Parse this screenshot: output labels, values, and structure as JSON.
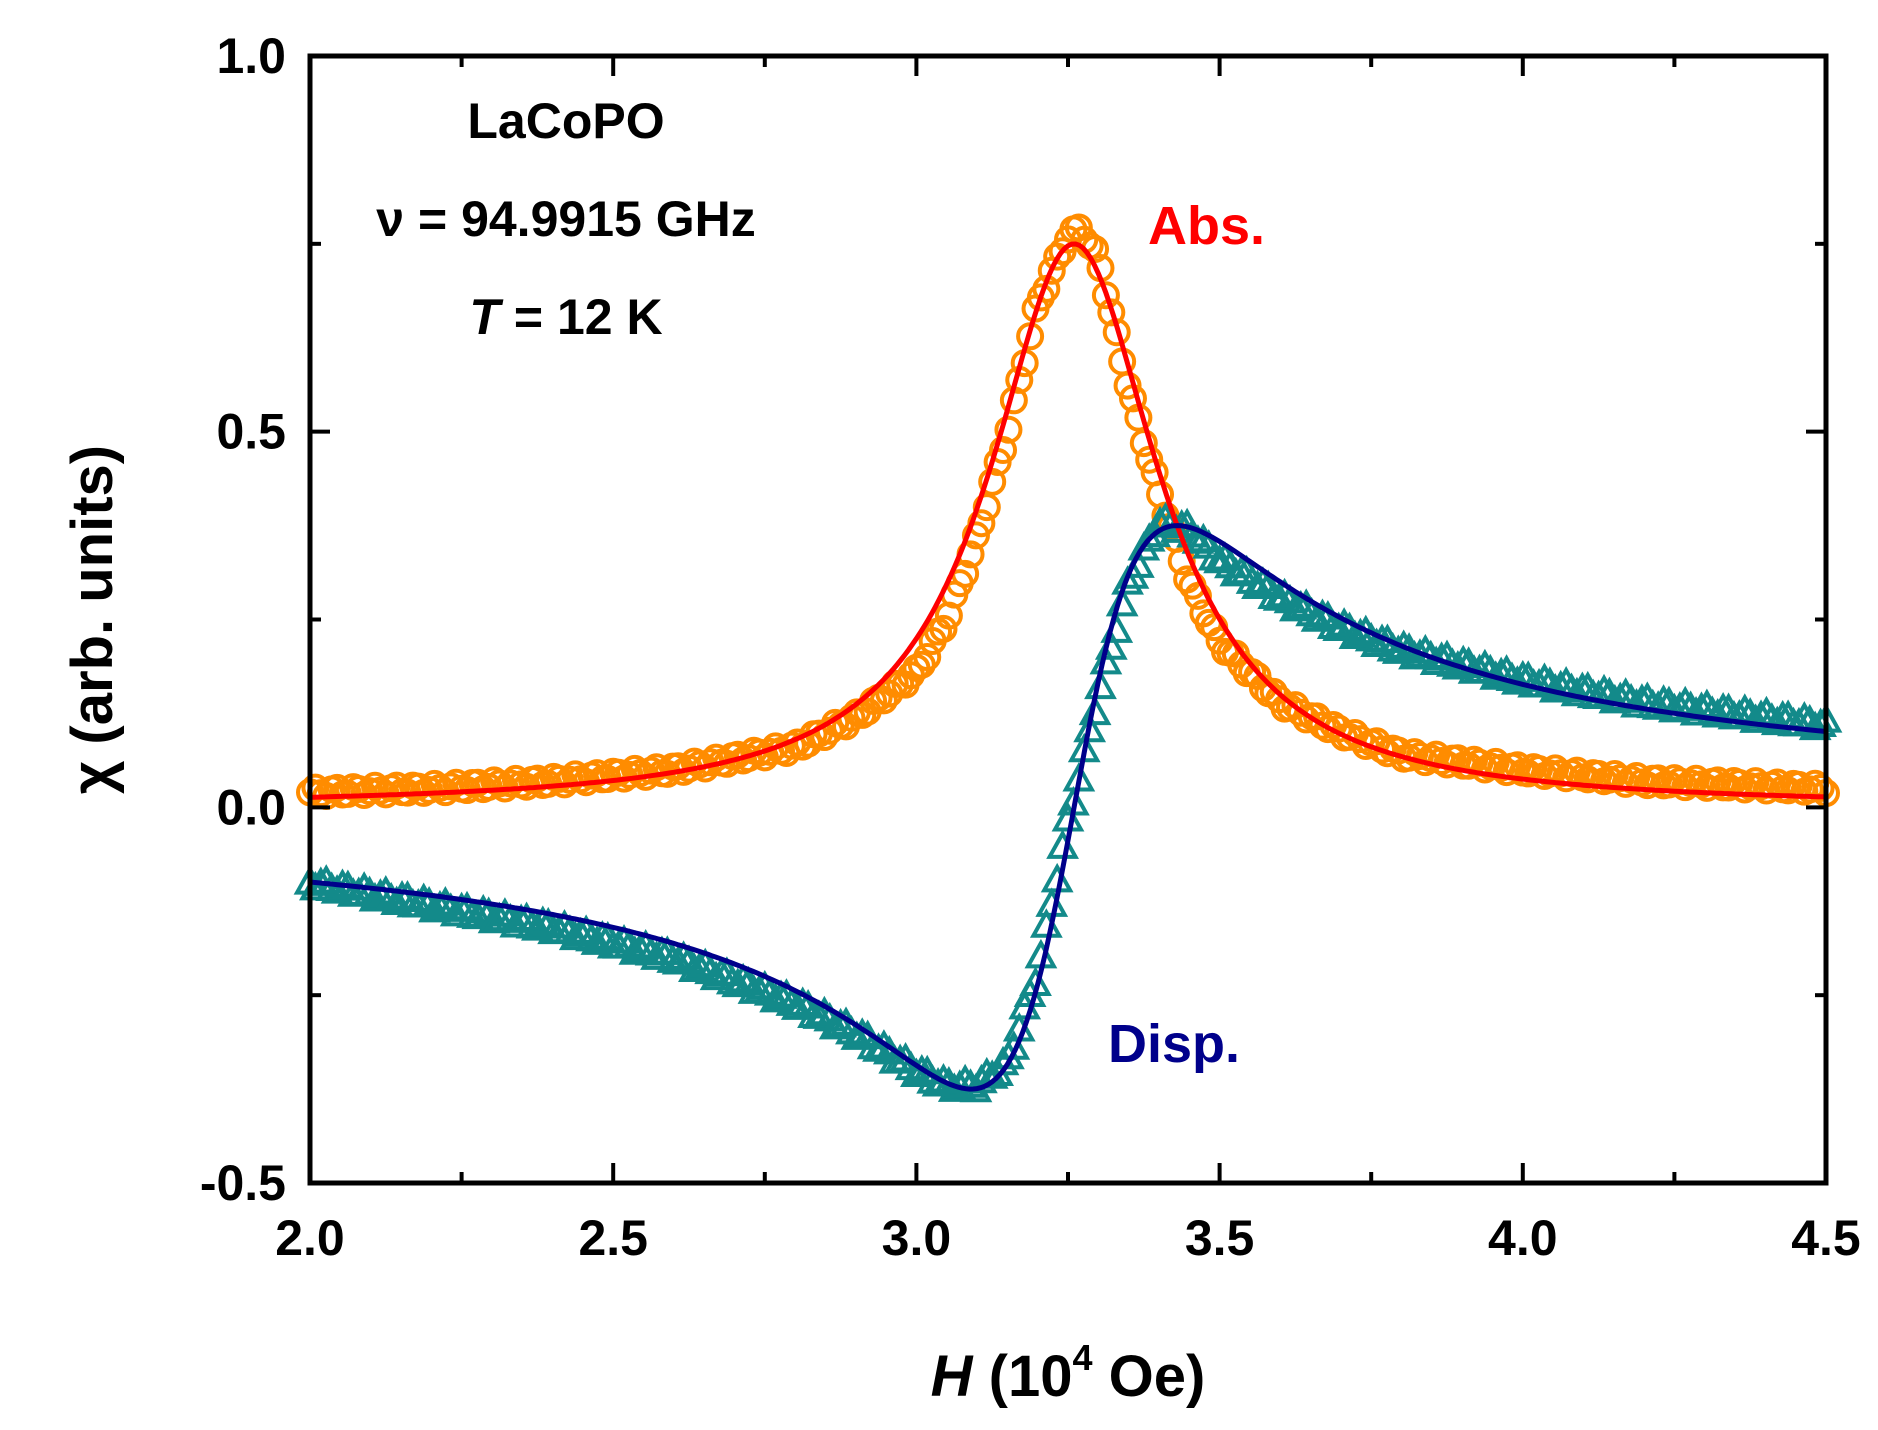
{
  "chart_data": {
    "type": "scatter",
    "xlabel": {
      "italic": "H",
      "prefix": " (10",
      "sup": "4",
      "suffix": " Oe)"
    },
    "ylabel": "χ (arb. units)",
    "xlim": [
      2.0,
      4.5
    ],
    "ylim": [
      -0.5,
      1.0
    ],
    "x_ticks": [
      "2.0",
      "2.5",
      "3.0",
      "3.5",
      "4.0",
      "4.5"
    ],
    "y_ticks": [
      "-0.5",
      "0.0",
      "0.5",
      "1.0"
    ],
    "grid": false,
    "annotations": {
      "sample": "LaCoPO",
      "frequency": "ν = 94.9915 GHz",
      "temperature_symbol": "T",
      "temperature_value": " = 12 K"
    },
    "fit_model": {
      "resonance_field": 3.26,
      "half_width": 0.17,
      "amplitude": 0.75
    },
    "series": [
      {
        "name": "Abs.",
        "kind": "data",
        "marker": "circle",
        "color": "#FF8C00",
        "label_color": "#FF0000",
        "x": [
          2.0,
          2.2,
          2.4,
          2.6,
          2.8,
          2.9,
          3.0,
          3.05,
          3.1,
          3.15,
          3.2,
          3.25,
          3.27,
          3.3,
          3.35,
          3.4,
          3.45,
          3.5,
          3.6,
          3.7,
          3.8,
          4.0,
          4.2,
          4.5
        ],
        "y": [
          0.02,
          0.025,
          0.035,
          0.05,
          0.08,
          0.12,
          0.18,
          0.25,
          0.36,
          0.5,
          0.67,
          0.76,
          0.77,
          0.73,
          0.56,
          0.42,
          0.3,
          0.22,
          0.14,
          0.1,
          0.07,
          0.05,
          0.035,
          0.025
        ]
      },
      {
        "name": "Disp.",
        "kind": "data",
        "marker": "triangle",
        "color": "#138A8A",
        "label_color": "#00008B",
        "x": [
          2.0,
          2.2,
          2.4,
          2.6,
          2.8,
          2.9,
          3.0,
          3.05,
          3.1,
          3.15,
          3.2,
          3.25,
          3.3,
          3.35,
          3.4,
          3.45,
          3.5,
          3.6,
          3.7,
          3.8,
          4.0,
          4.2,
          4.5
        ],
        "y": [
          -0.1,
          -0.13,
          -0.16,
          -0.2,
          -0.26,
          -0.3,
          -0.35,
          -0.37,
          -0.37,
          -0.34,
          -0.22,
          -0.02,
          0.15,
          0.3,
          0.38,
          0.37,
          0.33,
          0.28,
          0.24,
          0.21,
          0.17,
          0.14,
          0.11
        ]
      },
      {
        "name": "Abs. fit",
        "kind": "fit",
        "color": "#FF0000"
      },
      {
        "name": "Disp. fit",
        "kind": "fit",
        "color": "#00008B"
      }
    ]
  }
}
